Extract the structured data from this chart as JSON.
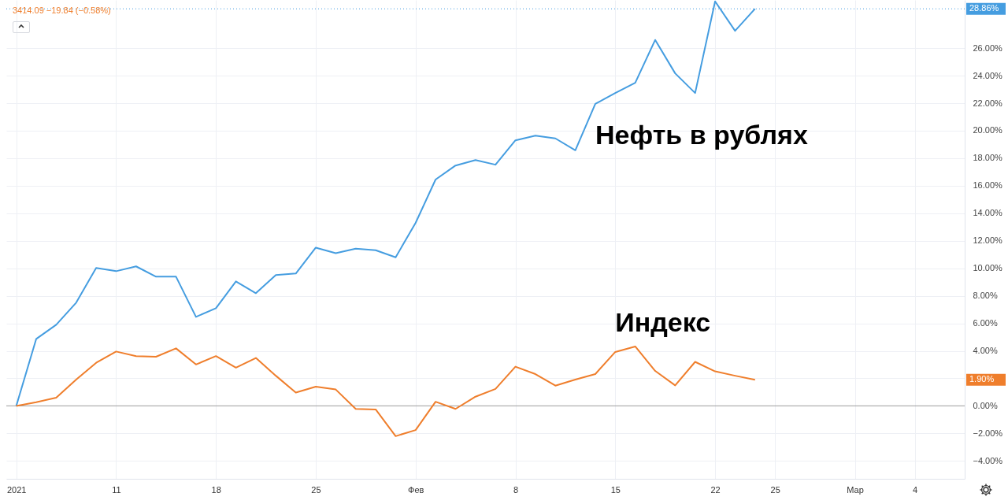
{
  "chart_data": {
    "type": "line",
    "categories": [
      "2021",
      null,
      null,
      null,
      null,
      "11",
      null,
      null,
      null,
      null,
      "18",
      null,
      null,
      null,
      null,
      "25",
      null,
      null,
      null,
      null,
      "Фев",
      null,
      null,
      null,
      null,
      "8",
      null,
      null,
      null,
      null,
      "15",
      null,
      null,
      null,
      null,
      "22",
      null,
      null,
      "25",
      null,
      null,
      null,
      "Мар",
      null,
      null,
      "4",
      null,
      null
    ],
    "series": [
      {
        "name": "Нефть в рублях",
        "color": "#459de0",
        "values": [
          0,
          4.87,
          5.9,
          7.5,
          10.02,
          9.79,
          10.14,
          9.39,
          9.39,
          6.47,
          7.1,
          9.05,
          8.19,
          9.51,
          9.62,
          11.5,
          11.1,
          11.43,
          11.31,
          10.8,
          13.3,
          16.45,
          17.47,
          17.87,
          17.53,
          19.3,
          19.64,
          19.44,
          18.58,
          21.95,
          22.74,
          23.48,
          26.6,
          24.17,
          22.74,
          29.4,
          27.26,
          28.86,
          null,
          null,
          null,
          null,
          null,
          null,
          null,
          null,
          null,
          null
        ]
      },
      {
        "name": "Индекс",
        "color": "#ef7e2c",
        "values": [
          0,
          0.27,
          0.6,
          1.91,
          3.13,
          3.95,
          3.62,
          3.57,
          4.18,
          3.01,
          3.62,
          2.78,
          3.48,
          2.19,
          0.97,
          1.4,
          1.19,
          -0.22,
          -0.26,
          -2.2,
          -1.76,
          0.3,
          -0.22,
          0.67,
          1.23,
          2.85,
          2.31,
          1.47,
          1.91,
          2.31,
          3.92,
          4.32,
          2.54,
          1.49,
          3.2,
          2.51,
          2.19,
          1.9,
          null,
          null,
          null,
          null,
          null,
          null,
          null,
          null,
          null,
          null
        ]
      }
    ],
    "ylim": [
      -5.3,
      29.5
    ],
    "yticks": [
      {
        "value": -4,
        "label": "−4.00%"
      },
      {
        "value": -2,
        "label": "−2.00%"
      },
      {
        "value": 0,
        "label": "0.00%"
      },
      {
        "value": 2,
        "label": null
      },
      {
        "value": 4,
        "label": "4.00%"
      },
      {
        "value": 6,
        "label": "6.00%"
      },
      {
        "value": 8,
        "label": "8.00%"
      },
      {
        "value": 10,
        "label": "10.00%"
      },
      {
        "value": 12,
        "label": "12.00%"
      },
      {
        "value": 14,
        "label": "14.00%"
      },
      {
        "value": 16,
        "label": "16.00%"
      },
      {
        "value": 18,
        "label": "18.00%"
      },
      {
        "value": 20,
        "label": "20.00%"
      },
      {
        "value": 22,
        "label": "22.00%"
      },
      {
        "value": 24,
        "label": "24.00%"
      },
      {
        "value": 26,
        "label": "26.00%"
      }
    ],
    "ref_lines": [
      {
        "axis": "y",
        "value": 0,
        "color": "#9e9e9e",
        "line_style": "solid"
      },
      {
        "axis": "y",
        "value": 28.86,
        "color": "#459de0",
        "line_style": "dotted",
        "label": "28.86%"
      }
    ],
    "annotations": [
      "3414.09 −19.84 (−0.58%)",
      "1.90%"
    ],
    "grid": true
  }
}
